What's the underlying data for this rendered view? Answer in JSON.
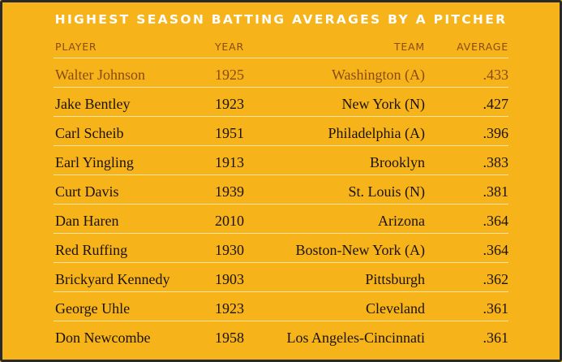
{
  "title": "HIGHEST SEASON BATTING AVERAGES BY A PITCHER",
  "columns": {
    "player": "PLAYER",
    "year": "YEAR",
    "team": "TEAM",
    "average": "AVERAGE"
  },
  "colors": {
    "background": "#f6b41a",
    "title": "#ffffff",
    "header": "#8a4a10",
    "highlight": "#8a4a10",
    "text": "#1c1208",
    "rule": "#fbe5a3"
  },
  "rows": [
    {
      "player": "Walter Johnson",
      "year": "1925",
      "team": "Washington (A)",
      "average": ".433",
      "highlight": true
    },
    {
      "player": "Jake Bentley",
      "year": "1923",
      "team": "New York (N)",
      "average": ".427"
    },
    {
      "player": "Carl Scheib",
      "year": "1951",
      "team": "Philadelphia (A)",
      "average": ".396"
    },
    {
      "player": "Earl Yingling",
      "year": "1913",
      "team": "Brooklyn",
      "average": ".383"
    },
    {
      "player": "Curt Davis",
      "year": "1939",
      "team": "St. Louis (N)",
      "average": ".381"
    },
    {
      "player": "Dan Haren",
      "year": "2010",
      "team": "Arizona",
      "average": ".364"
    },
    {
      "player": "Red Ruffing",
      "year": "1930",
      "team": "Boston-New York (A)",
      "average": ".364"
    },
    {
      "player": "Brickyard Kennedy",
      "year": "1903",
      "team": "Pittsburgh",
      "average": ".362"
    },
    {
      "player": "George Uhle",
      "year": "1923",
      "team": "Cleveland",
      "average": ".361"
    },
    {
      "player": "Don Newcombe",
      "year": "1958",
      "team": "Los Angeles-Cincinnati",
      "average": ".361"
    }
  ]
}
